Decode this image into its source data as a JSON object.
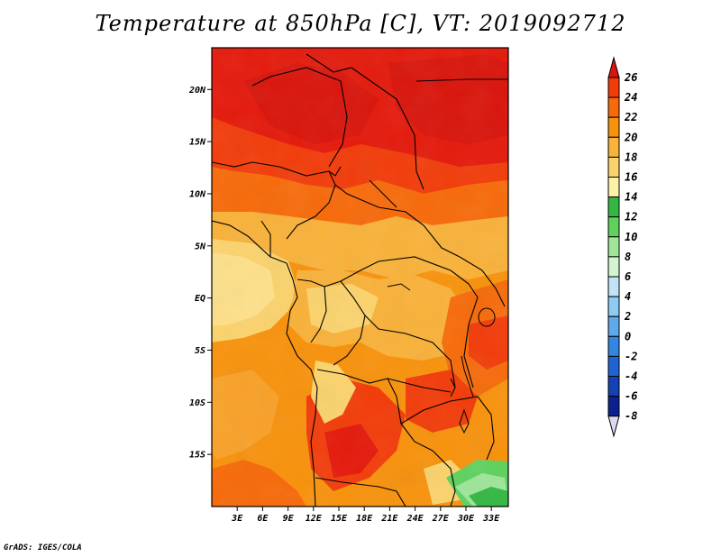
{
  "title": "Temperature at 850hPa [C], VT: 2019092712",
  "footer": "GrADS: IGES/COLA",
  "map": {
    "lon_range": [
      0,
      35
    ],
    "lat_range": [
      -20,
      24
    ],
    "lat_ticks": [
      {
        "value": 20,
        "label": "20N"
      },
      {
        "value": 15,
        "label": "15N"
      },
      {
        "value": 10,
        "label": "10N"
      },
      {
        "value": 5,
        "label": "5N"
      },
      {
        "value": 0,
        "label": "EQ"
      },
      {
        "value": -5,
        "label": "5S"
      },
      {
        "value": -10,
        "label": "10S"
      },
      {
        "value": -15,
        "label": "15S"
      }
    ],
    "lon_ticks": [
      {
        "value": 3,
        "label": "3E"
      },
      {
        "value": 6,
        "label": "6E"
      },
      {
        "value": 9,
        "label": "9E"
      },
      {
        "value": 12,
        "label": "12E"
      },
      {
        "value": 15,
        "label": "15E"
      },
      {
        "value": 18,
        "label": "18E"
      },
      {
        "value": 21,
        "label": "21E"
      },
      {
        "value": 24,
        "label": "24E"
      },
      {
        "value": 27,
        "label": "27E"
      },
      {
        "value": 30,
        "label": "30E"
      },
      {
        "value": 33,
        "label": "33E"
      }
    ]
  },
  "colorbar": {
    "levels": [
      {
        "label": "26",
        "color": "#e41a0c"
      },
      {
        "label": "24",
        "color": "#f23c0a"
      },
      {
        "label": "22",
        "color": "#f76a0a"
      },
      {
        "label": "20",
        "color": "#f8920c"
      },
      {
        "label": "18",
        "color": "#f9b23a"
      },
      {
        "label": "16",
        "color": "#fbd36d"
      },
      {
        "label": "14",
        "color": "#fdf0a8"
      },
      {
        "label": "12",
        "color": "#35b843"
      },
      {
        "label": "10",
        "color": "#5fd25e"
      },
      {
        "label": "8",
        "color": "#9fe69b"
      },
      {
        "label": "6",
        "color": "#d2f5cf"
      },
      {
        "label": "4",
        "color": "#bfe4f7"
      },
      {
        "label": "2",
        "color": "#8ecbf2"
      },
      {
        "label": "0",
        "color": "#5fa9ea"
      },
      {
        "label": "-2",
        "color": "#3485e0"
      },
      {
        "label": "-4",
        "color": "#1f63d4"
      },
      {
        "label": "-6",
        "color": "#1441b4"
      },
      {
        "label": "-8",
        "color": "#0c2090"
      }
    ],
    "top_color": "#d9150c",
    "bottom_color": "#dcd8f0"
  }
}
